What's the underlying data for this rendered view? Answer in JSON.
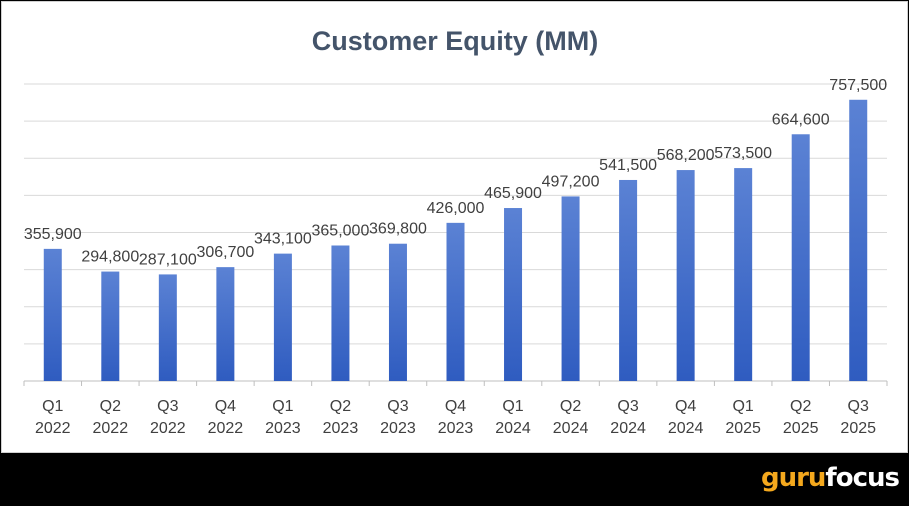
{
  "chart_data": {
    "type": "bar",
    "title": "Customer Equity (MM)",
    "categories": [
      [
        "Q1",
        "2022"
      ],
      [
        "Q2",
        "2022"
      ],
      [
        "Q3",
        "2022"
      ],
      [
        "Q4",
        "2022"
      ],
      [
        "Q1",
        "2023"
      ],
      [
        "Q2",
        "2023"
      ],
      [
        "Q3",
        "2023"
      ],
      [
        "Q4",
        "2023"
      ],
      [
        "Q1",
        "2024"
      ],
      [
        "Q2",
        "2024"
      ],
      [
        "Q3",
        "2024"
      ],
      [
        "Q4",
        "2024"
      ],
      [
        "Q1",
        "2025"
      ],
      [
        "Q2",
        "2025"
      ],
      [
        "Q3",
        "2025"
      ]
    ],
    "values": [
      355900,
      294800,
      287100,
      306700,
      343100,
      365000,
      369800,
      426000,
      465900,
      497200,
      541500,
      568200,
      573500,
      664600,
      757500
    ],
    "value_labels": [
      "355,900",
      "294,800",
      "287,100",
      "306,700",
      "343,100",
      "365,000",
      "369,800",
      "426,000",
      "465,900",
      "497,200",
      "541,500",
      "568,200",
      "573,500",
      "664,600",
      "757,500"
    ],
    "ylim": [
      0,
      800000
    ],
    "gridlines": true,
    "bar_color_top": "#5b82d4",
    "bar_color_bottom": "#2f5cc0"
  },
  "watermark": {
    "part1": "guru",
    "part2": "focus"
  }
}
